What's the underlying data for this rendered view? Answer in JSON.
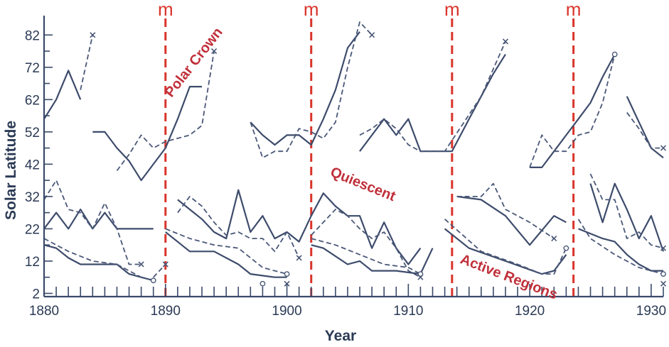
{
  "colors": {
    "axis": "#3a4a6a",
    "solid_series": "#3d4b6b",
    "dashed_series": "#4a5878",
    "minima_line": "#d9342b",
    "annotation": "#c0303a",
    "text": "#2b3a55"
  },
  "chart_data": {
    "type": "line",
    "title": "",
    "xlabel": "Year",
    "ylabel": "Solar Latitude",
    "xlim": [
      1880,
      1931
    ],
    "ylim": [
      1,
      88
    ],
    "x_ticks": [
      1880,
      1890,
      1900,
      1910,
      1920,
      1930
    ],
    "y_ticks": [
      2,
      12,
      22,
      32,
      42,
      52,
      62,
      72,
      82
    ],
    "minima": [
      {
        "year": 1890,
        "label": "m"
      },
      {
        "year": 1902,
        "label": "m"
      },
      {
        "year": 1913.6,
        "label": "m"
      },
      {
        "year": 1923.6,
        "label": "m"
      }
    ],
    "annotations": [
      {
        "text": "Polar Crown",
        "x": 1890.5,
        "y": 62.5,
        "angle": -52
      },
      {
        "text": "Quiescent",
        "x": 1903.5,
        "y": 38.5,
        "angle": 22
      },
      {
        "text": "Active Regions",
        "x": 1914.2,
        "y": 11.5,
        "angle": 21
      }
    ],
    "series": [
      {
        "style": "solid",
        "points": [
          [
            1880,
            56
          ],
          [
            1881,
            62
          ],
          [
            1882,
            71
          ],
          [
            1883,
            62
          ]
        ]
      },
      {
        "style": "dashed",
        "marker": "x",
        "points": [
          [
            1883,
            65
          ],
          [
            1884,
            82
          ]
        ]
      },
      {
        "style": "solid",
        "points": [
          [
            1884,
            52
          ],
          [
            1885,
            52
          ],
          [
            1886,
            47
          ],
          [
            1887,
            43
          ],
          [
            1888,
            37
          ],
          [
            1890,
            47
          ],
          [
            1891,
            56
          ],
          [
            1892,
            66
          ],
          [
            1893,
            66
          ]
        ]
      },
      {
        "style": "dashed",
        "marker": "x",
        "points": [
          [
            1886,
            40
          ],
          [
            1887,
            45
          ],
          [
            1888,
            51
          ],
          [
            1889,
            47
          ],
          [
            1890,
            49
          ],
          [
            1892,
            51
          ],
          [
            1893,
            54
          ],
          [
            1894,
            77
          ]
        ]
      },
      {
        "style": "solid",
        "points": [
          [
            1897,
            55
          ],
          [
            1898,
            51
          ],
          [
            1899,
            48
          ],
          [
            1900,
            51
          ],
          [
            1901,
            51
          ],
          [
            1902,
            48
          ],
          [
            1903,
            56
          ],
          [
            1904,
            65
          ],
          [
            1905,
            78
          ],
          [
            1906,
            83
          ]
        ]
      },
      {
        "style": "dashed",
        "marker": "x",
        "points": [
          [
            1897,
            55
          ],
          [
            1898,
            44
          ],
          [
            1899,
            46
          ],
          [
            1900,
            46
          ],
          [
            1901,
            53
          ],
          [
            1902,
            52
          ],
          [
            1903,
            50
          ],
          [
            1904,
            55
          ],
          [
            1905,
            72
          ],
          [
            1906,
            86
          ],
          [
            1907,
            82
          ]
        ]
      },
      {
        "style": "solid",
        "points": [
          [
            1906,
            46
          ],
          [
            1908,
            56
          ],
          [
            1909,
            51
          ],
          [
            1910,
            56
          ],
          [
            1911,
            46
          ],
          [
            1913.6,
            46
          ],
          [
            1915,
            56
          ],
          [
            1916,
            63
          ],
          [
            1917,
            70
          ],
          [
            1918,
            76
          ]
        ]
      },
      {
        "style": "dashed",
        "marker": "x",
        "points": [
          [
            1906,
            51
          ],
          [
            1907,
            53
          ],
          [
            1908,
            56
          ],
          [
            1909,
            53
          ],
          [
            1910,
            48
          ],
          [
            1911,
            46
          ],
          [
            1913,
            46
          ],
          [
            1916,
            63
          ],
          [
            1918,
            80
          ]
        ]
      },
      {
        "style": "solid",
        "points": [
          [
            1920,
            41
          ],
          [
            1921,
            41
          ],
          [
            1922,
            46
          ],
          [
            1923,
            51
          ],
          [
            1924,
            56
          ],
          [
            1925,
            61
          ],
          [
            1926,
            69
          ],
          [
            1927,
            76
          ]
        ]
      },
      {
        "style": "dashed",
        "marker": "o",
        "points": [
          [
            1920,
            41
          ],
          [
            1921,
            51
          ],
          [
            1922,
            46
          ],
          [
            1923,
            46
          ],
          [
            1924,
            51
          ],
          [
            1925,
            52
          ],
          [
            1926,
            61
          ],
          [
            1927,
            76
          ]
        ]
      },
      {
        "style": "solid",
        "points": [
          [
            1928,
            63
          ],
          [
            1929,
            55
          ],
          [
            1930,
            47
          ],
          [
            1931,
            44
          ]
        ]
      },
      {
        "style": "dashed",
        "marker": "x",
        "points": [
          [
            1928,
            58
          ],
          [
            1929,
            53
          ],
          [
            1930,
            47
          ],
          [
            1931,
            47
          ]
        ]
      },
      {
        "style": "solid",
        "points": [
          [
            1880,
            22
          ],
          [
            1881,
            27
          ],
          [
            1882,
            22
          ],
          [
            1883,
            28
          ],
          [
            1884,
            22
          ],
          [
            1885,
            27
          ],
          [
            1886,
            22
          ],
          [
            1889,
            22
          ]
        ]
      },
      {
        "style": "dashed",
        "marker": "x",
        "points": [
          [
            1880,
            31
          ],
          [
            1881,
            37
          ],
          [
            1882,
            28
          ],
          [
            1883,
            27
          ],
          [
            1884,
            22
          ],
          [
            1885,
            30
          ],
          [
            1886,
            22
          ],
          [
            1887,
            11
          ],
          [
            1888,
            11
          ]
        ]
      },
      {
        "style": "solid",
        "points": [
          [
            1880,
            17
          ],
          [
            1881,
            16
          ],
          [
            1882,
            13
          ],
          [
            1883,
            11
          ],
          [
            1886,
            11
          ],
          [
            1887,
            8
          ],
          [
            1888,
            7
          ],
          [
            1889,
            6
          ]
        ]
      },
      {
        "style": "dashed",
        "marker": "o",
        "points": [
          [
            1880,
            19
          ],
          [
            1882,
            15
          ],
          [
            1884,
            12
          ],
          [
            1886,
            11
          ],
          [
            1888,
            7
          ],
          [
            1889,
            6
          ]
        ]
      },
      {
        "style": "dashed",
        "marker": "x",
        "points": [
          [
            1889,
            7
          ],
          [
            1890,
            11
          ]
        ]
      },
      {
        "style": "solid",
        "points": [
          [
            1891,
            31
          ],
          [
            1892,
            28
          ],
          [
            1893,
            25
          ],
          [
            1894,
            21
          ],
          [
            1895,
            19
          ],
          [
            1896,
            34
          ],
          [
            1897,
            21
          ],
          [
            1898,
            26
          ],
          [
            1899,
            19
          ],
          [
            1900,
            21
          ],
          [
            1901,
            18
          ],
          [
            1902,
            26
          ]
        ]
      },
      {
        "style": "dashed",
        "marker": "x",
        "points": [
          [
            1891,
            27
          ],
          [
            1892,
            32
          ],
          [
            1893,
            29
          ],
          [
            1894,
            24
          ],
          [
            1895,
            20
          ],
          [
            1896,
            21
          ],
          [
            1897,
            19
          ],
          [
            1898,
            19
          ],
          [
            1899,
            15
          ],
          [
            1900,
            21
          ],
          [
            1901,
            13
          ]
        ]
      },
      {
        "style": "solid",
        "points": [
          [
            1890,
            21
          ],
          [
            1892,
            15
          ],
          [
            1894,
            15
          ],
          [
            1896,
            11
          ],
          [
            1897,
            8
          ],
          [
            1899,
            7
          ],
          [
            1900,
            7
          ]
        ]
      },
      {
        "style": "dashed",
        "marker": "o",
        "points": [
          [
            1890,
            22
          ],
          [
            1892,
            19
          ],
          [
            1894,
            17
          ],
          [
            1896,
            16
          ],
          [
            1898,
            10
          ],
          [
            1899,
            9
          ],
          [
            1900,
            8
          ]
        ]
      },
      {
        "style": "solid",
        "points": [
          [
            1902,
            26
          ],
          [
            1903,
            33
          ],
          [
            1904,
            29
          ],
          [
            1905,
            26
          ],
          [
            1906,
            26
          ],
          [
            1907,
            16
          ],
          [
            1908,
            24
          ],
          [
            1909,
            16
          ],
          [
            1910,
            11
          ],
          [
            1911,
            16
          ]
        ]
      },
      {
        "style": "dashed",
        "marker": "x",
        "points": [
          [
            1902,
            20
          ],
          [
            1903,
            24
          ],
          [
            1904,
            28
          ],
          [
            1905,
            26
          ],
          [
            1906,
            22
          ],
          [
            1907,
            19
          ],
          [
            1908,
            21
          ],
          [
            1909,
            16
          ],
          [
            1910,
            9
          ],
          [
            1911,
            7
          ]
        ]
      },
      {
        "style": "solid",
        "points": [
          [
            1902,
            17
          ],
          [
            1903,
            16
          ],
          [
            1905,
            11
          ],
          [
            1906,
            12
          ],
          [
            1907,
            9
          ],
          [
            1909,
            9
          ],
          [
            1911,
            8
          ],
          [
            1912,
            16
          ]
        ]
      },
      {
        "style": "dashed",
        "marker": "o",
        "points": [
          [
            1902,
            19
          ],
          [
            1904,
            17
          ],
          [
            1906,
            14
          ],
          [
            1908,
            11
          ],
          [
            1910,
            10
          ],
          [
            1911,
            8
          ]
        ]
      },
      {
        "style": "solid",
        "points": [
          [
            1914,
            32
          ],
          [
            1916,
            31
          ],
          [
            1918,
            26
          ],
          [
            1920,
            17
          ],
          [
            1922,
            26
          ],
          [
            1923,
            24
          ]
        ]
      },
      {
        "style": "dashed",
        "marker": "x",
        "points": [
          [
            1914,
            32
          ],
          [
            1915,
            32
          ],
          [
            1916,
            32
          ],
          [
            1917,
            36
          ],
          [
            1918,
            28
          ],
          [
            1920,
            24
          ],
          [
            1922,
            19
          ]
        ]
      },
      {
        "style": "solid",
        "points": [
          [
            1913,
            22
          ],
          [
            1915,
            16
          ],
          [
            1918,
            12
          ],
          [
            1921,
            8
          ],
          [
            1922,
            9
          ],
          [
            1923,
            14
          ]
        ]
      },
      {
        "style": "dashed",
        "marker": "o",
        "points": [
          [
            1913,
            25
          ],
          [
            1916,
            15
          ],
          [
            1919,
            11
          ],
          [
            1921,
            8
          ],
          [
            1922,
            8
          ],
          [
            1923,
            16
          ]
        ]
      },
      {
        "style": "solid",
        "points": [
          [
            1925,
            36
          ],
          [
            1926,
            24
          ],
          [
            1927,
            36
          ],
          [
            1928,
            28
          ],
          [
            1929,
            19
          ],
          [
            1930,
            26
          ],
          [
            1931,
            15
          ]
        ]
      },
      {
        "style": "dashed",
        "marker": "x",
        "points": [
          [
            1925,
            39
          ],
          [
            1926,
            31
          ],
          [
            1927,
            31
          ],
          [
            1928,
            19
          ],
          [
            1929,
            21
          ],
          [
            1930,
            17
          ],
          [
            1931,
            16
          ]
        ]
      },
      {
        "style": "solid",
        "points": [
          [
            1924,
            22
          ],
          [
            1926,
            19
          ],
          [
            1927,
            18
          ],
          [
            1928,
            14
          ],
          [
            1929,
            11
          ],
          [
            1930,
            9
          ],
          [
            1931,
            9
          ]
        ]
      },
      {
        "style": "dashed",
        "marker": "o",
        "points": [
          [
            1924,
            25
          ],
          [
            1925,
            19
          ],
          [
            1927,
            14
          ],
          [
            1929,
            10
          ],
          [
            1931,
            8
          ]
        ]
      },
      {
        "style": "marker-only",
        "marker": "o",
        "points": [
          [
            1898,
            5
          ]
        ]
      },
      {
        "style": "marker-only",
        "marker": "x",
        "points": [
          [
            1900,
            5
          ]
        ]
      },
      {
        "style": "marker-only",
        "marker": "x",
        "points": [
          [
            1931,
            5
          ]
        ]
      }
    ]
  }
}
